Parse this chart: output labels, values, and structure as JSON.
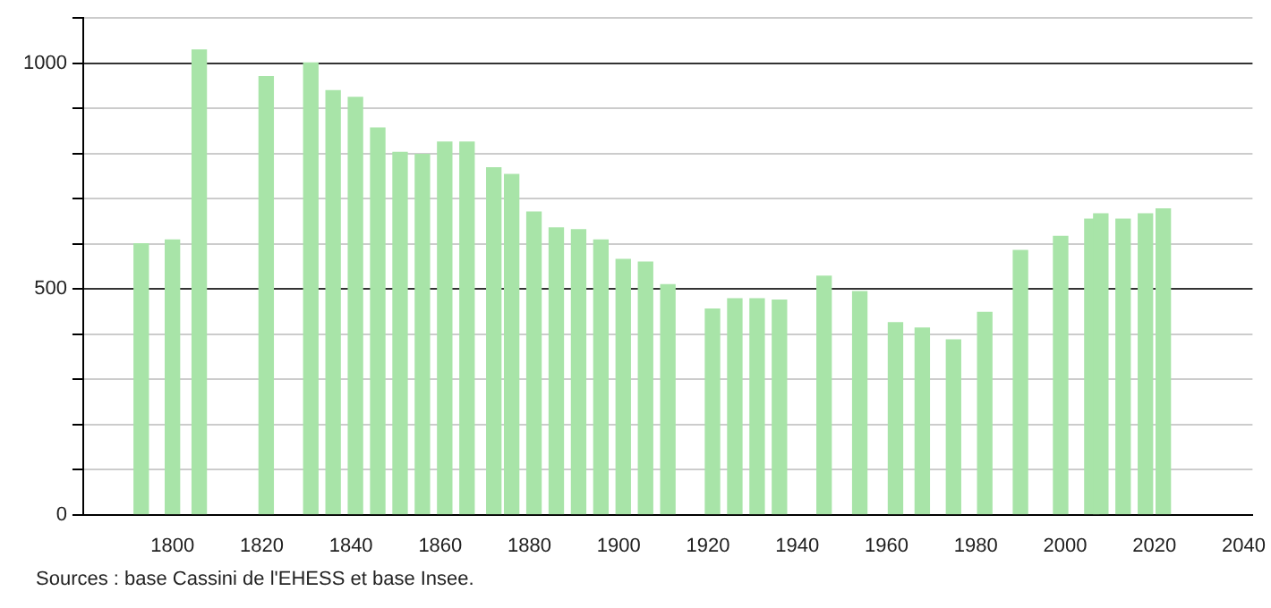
{
  "chart_data": {
    "type": "bar",
    "x": [
      1793,
      1800,
      1806,
      1821,
      1831,
      1836,
      1841,
      1846,
      1851,
      1856,
      1861,
      1866,
      1872,
      1876,
      1881,
      1886,
      1891,
      1896,
      1901,
      1906,
      1911,
      1921,
      1926,
      1931,
      1936,
      1946,
      1954,
      1962,
      1968,
      1975,
      1982,
      1990,
      1999,
      2006,
      2008,
      2013,
      2018,
      2022
    ],
    "values": [
      600,
      608,
      1029,
      970,
      1000,
      939,
      924,
      856,
      802,
      798,
      825,
      825,
      768,
      753,
      670,
      635,
      631,
      608,
      565,
      559,
      509,
      455,
      478,
      478,
      475,
      528,
      494,
      425,
      413,
      387,
      448,
      585,
      616,
      654,
      666,
      654,
      666,
      677
    ],
    "color": "#a8e4a8",
    "xlim": [
      1780,
      2042
    ],
    "xticks": [
      1800,
      1820,
      1840,
      1860,
      1880,
      1900,
      1920,
      1940,
      1960,
      1980,
      2000,
      2020,
      2040
    ],
    "ylim": [
      0,
      1100
    ],
    "yticks": [
      0,
      {
        "value": 100,
        "label": null
      },
      {
        "value": 200,
        "label": null
      },
      {
        "value": 300,
        "label": null
      },
      {
        "value": 400,
        "label": null
      },
      500,
      {
        "value": 600,
        "label": null
      },
      {
        "value": 700,
        "label": null
      },
      {
        "value": 800,
        "label": null
      },
      {
        "value": 900,
        "label": null
      },
      1000,
      {
        "value": 1100,
        "label": null
      }
    ],
    "grid": "y",
    "legend": false,
    "annotations": [
      "Sources : base Cassini de l'EHESS et base Insee."
    ]
  }
}
